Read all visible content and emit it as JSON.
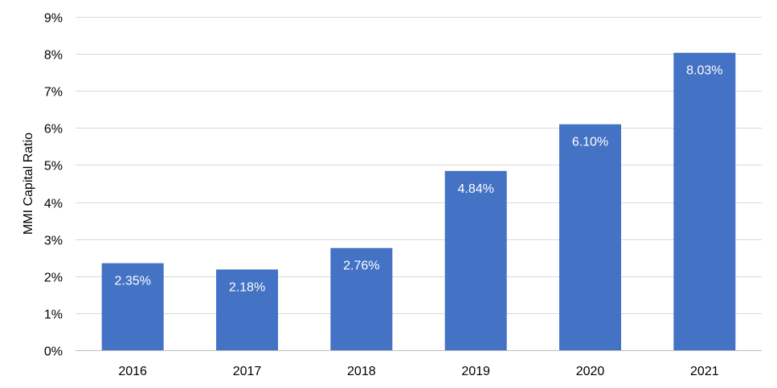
{
  "chart_data": {
    "type": "bar",
    "title": "",
    "xlabel": "",
    "ylabel": "MMI Capital Ratio",
    "categories": [
      "2016",
      "2017",
      "2018",
      "2019",
      "2020",
      "2021"
    ],
    "values": [
      2.35,
      2.18,
      2.76,
      4.84,
      6.1,
      8.03
    ],
    "value_labels": [
      "2.35%",
      "2.18%",
      "2.76%",
      "4.84%",
      "6.10%",
      "8.03%"
    ],
    "ylim": [
      0,
      9
    ],
    "yticks": [
      0,
      1,
      2,
      3,
      4,
      5,
      6,
      7,
      8,
      9
    ],
    "ytick_labels": [
      "0%",
      "1%",
      "2%",
      "3%",
      "4%",
      "5%",
      "6%",
      "7%",
      "8%",
      "9%"
    ],
    "grid": true,
    "legend": "none",
    "colors": {
      "bar": "#4472c4",
      "grid": "#d9d9d9",
      "data_label": "#ffffff"
    }
  }
}
